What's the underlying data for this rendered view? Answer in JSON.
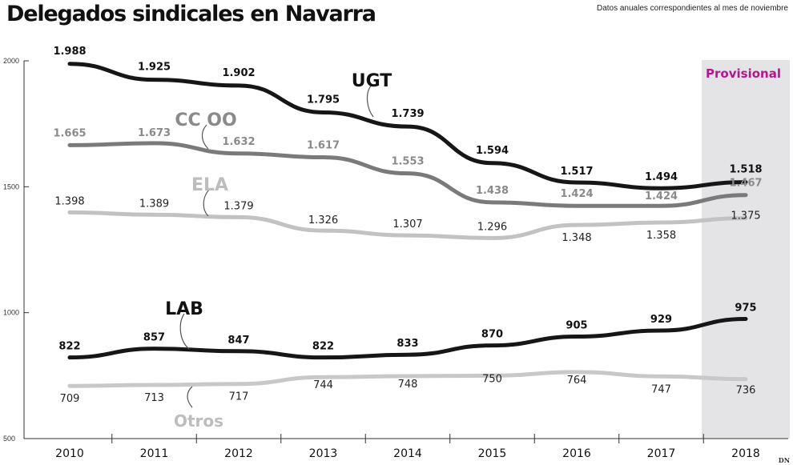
{
  "chart_data": {
    "type": "line",
    "title": "Delegados sindicales en Navarra",
    "subtitle": "Datos anuales correspondientes al mes de noviembre",
    "badge": "Provisional",
    "source": "DN",
    "categories": [
      "2010",
      "2011",
      "2012",
      "2013",
      "2014",
      "2015",
      "2016",
      "2017",
      "2018"
    ],
    "highlighted_category": "2018",
    "y_ticks": [
      "500",
      "1000",
      "1500",
      "2000"
    ],
    "ylim": [
      500,
      2000
    ],
    "grid": false,
    "colors": {
      "badge_text": "#b3178c",
      "badge_band": "#e4e4e6"
    },
    "series": [
      {
        "name": "UGT",
        "color": "#161616",
        "label_color": "#111111",
        "bold_labels": true,
        "values": [
          1988,
          1925,
          1902,
          1795,
          1739,
          1594,
          1517,
          1494,
          1518
        ],
        "labels": [
          "1.988",
          "1.925",
          "1.902",
          "1.795",
          "1.739",
          "1.594",
          "1.517",
          "1.494",
          "1.518"
        ]
      },
      {
        "name": "CC OO",
        "color": "#7a7a7a",
        "label_color": "#8a8a8a",
        "bold_labels": true,
        "values": [
          1665,
          1673,
          1632,
          1617,
          1553,
          1438,
          1424,
          1424,
          1467
        ],
        "labels": [
          "1.665",
          "1.673",
          "1.632",
          "1.617",
          "1.553",
          "1.438",
          "1.424",
          "1.424",
          "1.467"
        ]
      },
      {
        "name": "ELA",
        "color": "#c2c2c2",
        "label_color": "#222222",
        "bold_labels": false,
        "values": [
          1398,
          1389,
          1379,
          1326,
          1307,
          1296,
          1348,
          1358,
          1375
        ],
        "labels": [
          "1.398",
          "1.389",
          "1.379",
          "1.326",
          "1.307",
          "1.296",
          "1.348",
          "1.358",
          "1.375"
        ]
      },
      {
        "name": "LAB",
        "color": "#161616",
        "label_color": "#111111",
        "bold_labels": true,
        "values": [
          822,
          857,
          847,
          822,
          833,
          870,
          905,
          929,
          975
        ],
        "labels": [
          "822",
          "857",
          "847",
          "822",
          "833",
          "870",
          "905",
          "929",
          "975"
        ]
      },
      {
        "name": "Otros",
        "color": "#c8c8c8",
        "label_color": "#222222",
        "bold_labels": false,
        "values": [
          709,
          713,
          717,
          744,
          748,
          750,
          764,
          747,
          736
        ],
        "labels": [
          "709",
          "713",
          "717",
          "744",
          "748",
          "750",
          "764",
          "747",
          "736"
        ]
      }
    ]
  }
}
